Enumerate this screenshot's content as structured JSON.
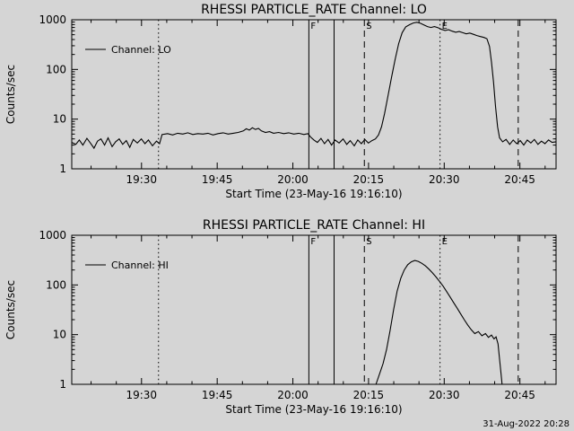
{
  "page": {
    "colors": {
      "background": "#d5d5d5",
      "foreground": "#000000"
    },
    "timestamp": "31-Aug-2022 20:28"
  },
  "chart_data": [
    {
      "type": "line",
      "title": "RHESSI PARTICLE_RATE Channel: LO",
      "xlabel": "Start Time (23-May-16 19:16:10)",
      "ylabel": "Counts/sec",
      "legend_label": "Channel: LO",
      "x_unit": "minutes after 19:16:10 UT",
      "xlim": [
        0,
        96
      ],
      "ylim": [
        1,
        1000
      ],
      "y_scale": "log",
      "x_minor_step": 5,
      "xticks": [
        {
          "t": 13.83,
          "label": "19:30"
        },
        {
          "t": 28.83,
          "label": "19:45"
        },
        {
          "t": 43.83,
          "label": "20:00"
        },
        {
          "t": 58.83,
          "label": "20:15"
        },
        {
          "t": 73.83,
          "label": "20:30"
        },
        {
          "t": 88.83,
          "label": "20:45"
        }
      ],
      "yticks": [
        {
          "v": 1,
          "label": "1"
        },
        {
          "v": 10,
          "label": "10"
        },
        {
          "v": 100,
          "label": "100"
        },
        {
          "v": 1000,
          "label": "1000"
        }
      ],
      "ref_lines": [
        {
          "t": 17.2,
          "style": "dotted",
          "label": ""
        },
        {
          "t": 47.0,
          "style": "solid",
          "label": "F"
        },
        {
          "t": 52.0,
          "style": "solid",
          "label": ""
        },
        {
          "t": 58.0,
          "style": "dashed",
          "label": "S"
        },
        {
          "t": 73.0,
          "style": "dotted",
          "label": "E"
        },
        {
          "t": 88.5,
          "style": "dashed",
          "label": ""
        }
      ],
      "show_ref_labels": true,
      "series": [
        {
          "name": "LO",
          "points": [
            [
              0,
              3.4
            ],
            [
              0.8,
              3.1
            ],
            [
              1.5,
              3.8
            ],
            [
              2.2,
              3
            ],
            [
              3,
              4.1
            ],
            [
              3.7,
              3.3
            ],
            [
              4.4,
              2.6
            ],
            [
              5.1,
              3.6
            ],
            [
              5.8,
              4
            ],
            [
              6.5,
              3
            ],
            [
              7.2,
              4.2
            ],
            [
              8,
              2.8
            ],
            [
              8.7,
              3.5
            ],
            [
              9.4,
              4
            ],
            [
              10.1,
              3.1
            ],
            [
              10.8,
              3.7
            ],
            [
              11.5,
              2.7
            ],
            [
              12.2,
              3.9
            ],
            [
              13,
              3.3
            ],
            [
              13.8,
              4
            ],
            [
              14.5,
              3.2
            ],
            [
              15.2,
              3.8
            ],
            [
              16,
              2.9
            ],
            [
              16.8,
              3.6
            ],
            [
              17.4,
              3.2
            ],
            [
              17.9,
              4.9
            ],
            [
              19,
              5.1
            ],
            [
              20,
              4.8
            ],
            [
              21,
              5.2
            ],
            [
              22,
              5
            ],
            [
              23,
              5.3
            ],
            [
              24,
              4.9
            ],
            [
              25,
              5.1
            ],
            [
              26,
              5
            ],
            [
              27,
              5.2
            ],
            [
              28,
              4.8
            ],
            [
              29,
              5.1
            ],
            [
              30,
              5.3
            ],
            [
              31,
              5
            ],
            [
              32,
              5.2
            ],
            [
              33,
              5.4
            ],
            [
              34,
              5.8
            ],
            [
              34.6,
              6.4
            ],
            [
              35.2,
              6
            ],
            [
              35.8,
              6.7
            ],
            [
              36.4,
              6.2
            ],
            [
              37,
              6.5
            ],
            [
              37.6,
              5.8
            ],
            [
              38.4,
              5.4
            ],
            [
              39.2,
              5.6
            ],
            [
              40,
              5.2
            ],
            [
              41,
              5.4
            ],
            [
              42,
              5.1
            ],
            [
              43,
              5.3
            ],
            [
              44,
              5
            ],
            [
              45,
              5.2
            ],
            [
              46,
              4.9
            ],
            [
              46.8,
              5.1
            ],
            [
              47.3,
              4.4
            ],
            [
              48,
              3.8
            ],
            [
              48.7,
              3.4
            ],
            [
              49.4,
              4.1
            ],
            [
              50.1,
              3.2
            ],
            [
              50.8,
              3.9
            ],
            [
              51.5,
              3
            ],
            [
              52.2,
              3.8
            ],
            [
              53,
              3.3
            ],
            [
              53.8,
              4
            ],
            [
              54.5,
              3.1
            ],
            [
              55.2,
              3.7
            ],
            [
              56,
              2.9
            ],
            [
              56.7,
              3.8
            ],
            [
              57.4,
              3.2
            ],
            [
              58.1,
              3.9
            ],
            [
              58.8,
              3.3
            ],
            [
              59.5,
              3.7
            ],
            [
              60.2,
              4
            ],
            [
              60.8,
              4.8
            ],
            [
              61.4,
              7
            ],
            [
              62,
              13
            ],
            [
              62.7,
              30
            ],
            [
              63.4,
              70
            ],
            [
              64.1,
              160
            ],
            [
              64.8,
              330
            ],
            [
              65.5,
              550
            ],
            [
              66.2,
              720
            ],
            [
              67,
              800
            ],
            [
              67.7,
              860
            ],
            [
              68.4,
              890
            ],
            [
              69.1,
              850
            ],
            [
              69.8,
              790
            ],
            [
              70.5,
              730
            ],
            [
              71.2,
              700
            ],
            [
              71.9,
              730
            ],
            [
              72.6,
              690
            ],
            [
              73.3,
              640
            ],
            [
              74,
              610
            ],
            [
              74.7,
              630
            ],
            [
              75.4,
              590
            ],
            [
              76.1,
              560
            ],
            [
              76.8,
              580
            ],
            [
              77.5,
              550
            ],
            [
              78.2,
              520
            ],
            [
              78.9,
              540
            ],
            [
              79.6,
              510
            ],
            [
              80.3,
              480
            ],
            [
              81,
              460
            ],
            [
              81.7,
              440
            ],
            [
              82.3,
              415
            ],
            [
              82.8,
              290
            ],
            [
              83.2,
              140
            ],
            [
              83.6,
              55
            ],
            [
              84,
              18
            ],
            [
              84.4,
              7
            ],
            [
              84.8,
              4.2
            ],
            [
              85.4,
              3.5
            ],
            [
              86.1,
              3.9
            ],
            [
              86.8,
              3.1
            ],
            [
              87.5,
              3.8
            ],
            [
              88.2,
              3.2
            ],
            [
              88.9,
              3.7
            ],
            [
              89.6,
              3
            ],
            [
              90.3,
              3.8
            ],
            [
              91,
              3.3
            ],
            [
              91.7,
              3.9
            ],
            [
              92.4,
              3.1
            ],
            [
              93.1,
              3.6
            ],
            [
              93.8,
              3.2
            ],
            [
              94.5,
              3.8
            ],
            [
              95.2,
              3.4
            ],
            [
              96,
              3.5
            ]
          ]
        }
      ]
    },
    {
      "type": "line",
      "title": "RHESSI PARTICLE_RATE Channel: HI",
      "xlabel": "Start Time (23-May-16 19:16:10)",
      "ylabel": "Counts/sec",
      "legend_label": "Channel: HI",
      "x_unit": "minutes after 19:16:10 UT",
      "xlim": [
        0,
        96
      ],
      "ylim": [
        1,
        1000
      ],
      "y_scale": "log",
      "x_minor_step": 5,
      "xticks": [
        {
          "t": 13.83,
          "label": "19:30"
        },
        {
          "t": 28.83,
          "label": "19:45"
        },
        {
          "t": 43.83,
          "label": "20:00"
        },
        {
          "t": 58.83,
          "label": "20:15"
        },
        {
          "t": 73.83,
          "label": "20:30"
        },
        {
          "t": 88.83,
          "label": "20:45"
        }
      ],
      "yticks": [
        {
          "v": 1,
          "label": "1"
        },
        {
          "v": 10,
          "label": "10"
        },
        {
          "v": 100,
          "label": "100"
        },
        {
          "v": 1000,
          "label": "1000"
        }
      ],
      "ref_lines": [
        {
          "t": 17.2,
          "style": "dotted",
          "label": ""
        },
        {
          "t": 47.0,
          "style": "solid",
          "label": "F"
        },
        {
          "t": 52.0,
          "style": "solid",
          "label": ""
        },
        {
          "t": 58.0,
          "style": "dashed",
          "label": "S"
        },
        {
          "t": 73.0,
          "style": "dotted",
          "label": "E"
        },
        {
          "t": 88.5,
          "style": "dashed",
          "label": ""
        }
      ],
      "show_ref_labels": true,
      "series": [
        {
          "name": "HI",
          "points": [
            [
              59,
              1
            ],
            [
              60.3,
              1
            ],
            [
              61,
              1.6
            ],
            [
              61.7,
              2.6
            ],
            [
              62.4,
              5
            ],
            [
              63.1,
              12
            ],
            [
              63.8,
              32
            ],
            [
              64.5,
              75
            ],
            [
              65.2,
              135
            ],
            [
              65.9,
              200
            ],
            [
              66.6,
              255
            ],
            [
              67.3,
              292
            ],
            [
              68,
              310
            ],
            [
              68.7,
              298
            ],
            [
              69.4,
              272
            ],
            [
              70.1,
              242
            ],
            [
              70.8,
              208
            ],
            [
              71.5,
              175
            ],
            [
              72.2,
              145
            ],
            [
              72.9,
              118
            ],
            [
              73.6,
              95
            ],
            [
              74.3,
              74
            ],
            [
              75,
              57
            ],
            [
              75.7,
              44
            ],
            [
              76.4,
              34
            ],
            [
              77.1,
              26
            ],
            [
              77.8,
              20
            ],
            [
              78.5,
              15.5
            ],
            [
              79.2,
              12.5
            ],
            [
              79.9,
              10.5
            ],
            [
              80.6,
              11.5
            ],
            [
              81.3,
              9.5
            ],
            [
              82,
              10.5
            ],
            [
              82.6,
              8.8
            ],
            [
              83.2,
              9.8
            ],
            [
              83.7,
              8.2
            ],
            [
              84.1,
              9
            ],
            [
              84.5,
              6.5
            ],
            [
              84.8,
              3.2
            ],
            [
              85.1,
              1.6
            ],
            [
              85.3,
              1
            ]
          ]
        }
      ]
    }
  ]
}
